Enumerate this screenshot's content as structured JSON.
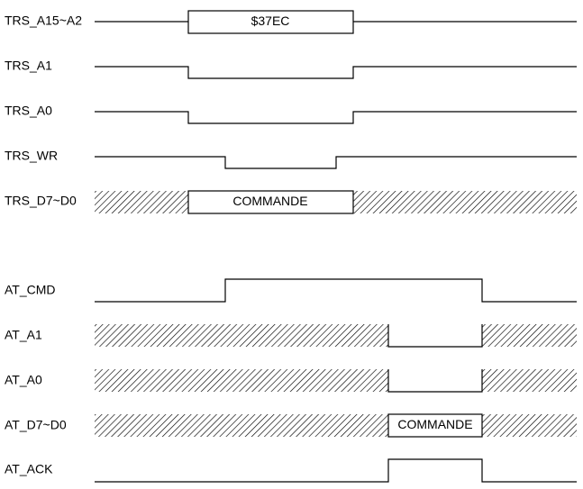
{
  "signals": [
    {
      "label": "TRS_A15~A2",
      "value": "$37EC"
    },
    {
      "label": "TRS_A1"
    },
    {
      "label": "TRS_A0"
    },
    {
      "label": "TRS_WR"
    },
    {
      "label": "TRS_D7~D0",
      "value": "COMMANDE"
    },
    {
      "label": "AT_CMD"
    },
    {
      "label": "AT_A1"
    },
    {
      "label": "AT_A0"
    },
    {
      "label": "AT_D7~D0",
      "value": "COMMANDE"
    },
    {
      "label": "AT_ACK"
    }
  ]
}
